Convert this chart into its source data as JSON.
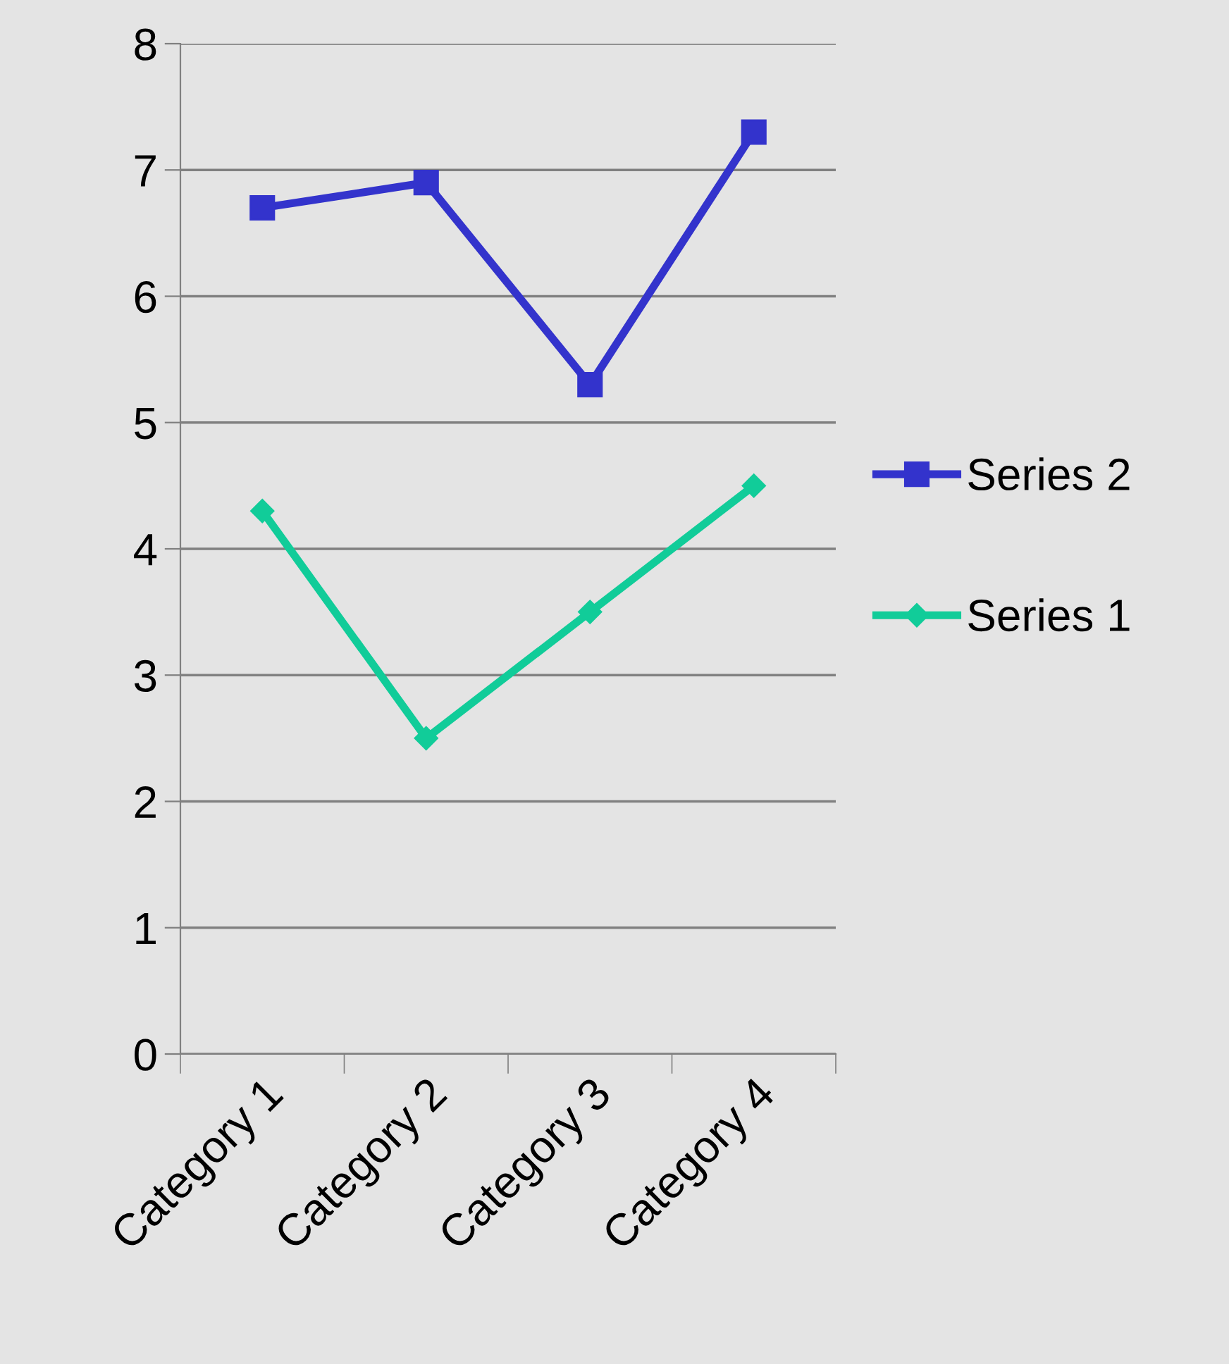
{
  "chart_data": {
    "type": "line",
    "categories": [
      "Category 1",
      "Category 2",
      "Category 3",
      "Category 4"
    ],
    "series": [
      {
        "name": "Series 2",
        "color": "#3333cc",
        "marker": "square",
        "values": [
          6.7,
          6.9,
          5.3,
          7.3
        ]
      },
      {
        "name": "Series 1",
        "color": "#11cc99",
        "marker": "diamond",
        "values": [
          4.3,
          2.5,
          3.5,
          4.5
        ]
      }
    ],
    "ylim": [
      0,
      8
    ],
    "yticks": [
      0,
      1,
      2,
      3,
      4,
      5,
      6,
      7,
      8
    ],
    "grid": "y",
    "legend": "right",
    "line_style": "solid"
  }
}
